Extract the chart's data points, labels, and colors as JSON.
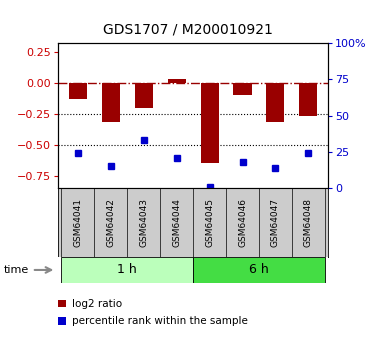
{
  "title": "GDS1707 / M200010921",
  "samples": [
    "GSM64041",
    "GSM64042",
    "GSM64043",
    "GSM64044",
    "GSM64045",
    "GSM64046",
    "GSM64047",
    "GSM64048"
  ],
  "log2_ratio": [
    -0.13,
    -0.32,
    -0.2,
    0.03,
    -0.65,
    -0.1,
    -0.32,
    -0.27
  ],
  "percentile_rank": [
    24,
    15,
    33,
    21,
    1,
    18,
    14,
    24
  ],
  "time_groups": [
    {
      "label": "1 h",
      "start": 0,
      "end": 4
    },
    {
      "label": "6 h",
      "start": 4,
      "end": 8
    }
  ],
  "left_ylim": [
    -0.85,
    0.32
  ],
  "left_yticks": [
    0.25,
    0.0,
    -0.25,
    -0.5,
    -0.75
  ],
  "right_yticks_pct": [
    100,
    75,
    50,
    25,
    0
  ],
  "bar_color": "#990000",
  "dot_color": "#0000cc",
  "group_colors": [
    "#bbffbb",
    "#44dd44"
  ],
  "dotted_lines": [
    -0.25,
    -0.5
  ],
  "legend_labels": [
    "log2 ratio",
    "percentile rank within the sample"
  ]
}
